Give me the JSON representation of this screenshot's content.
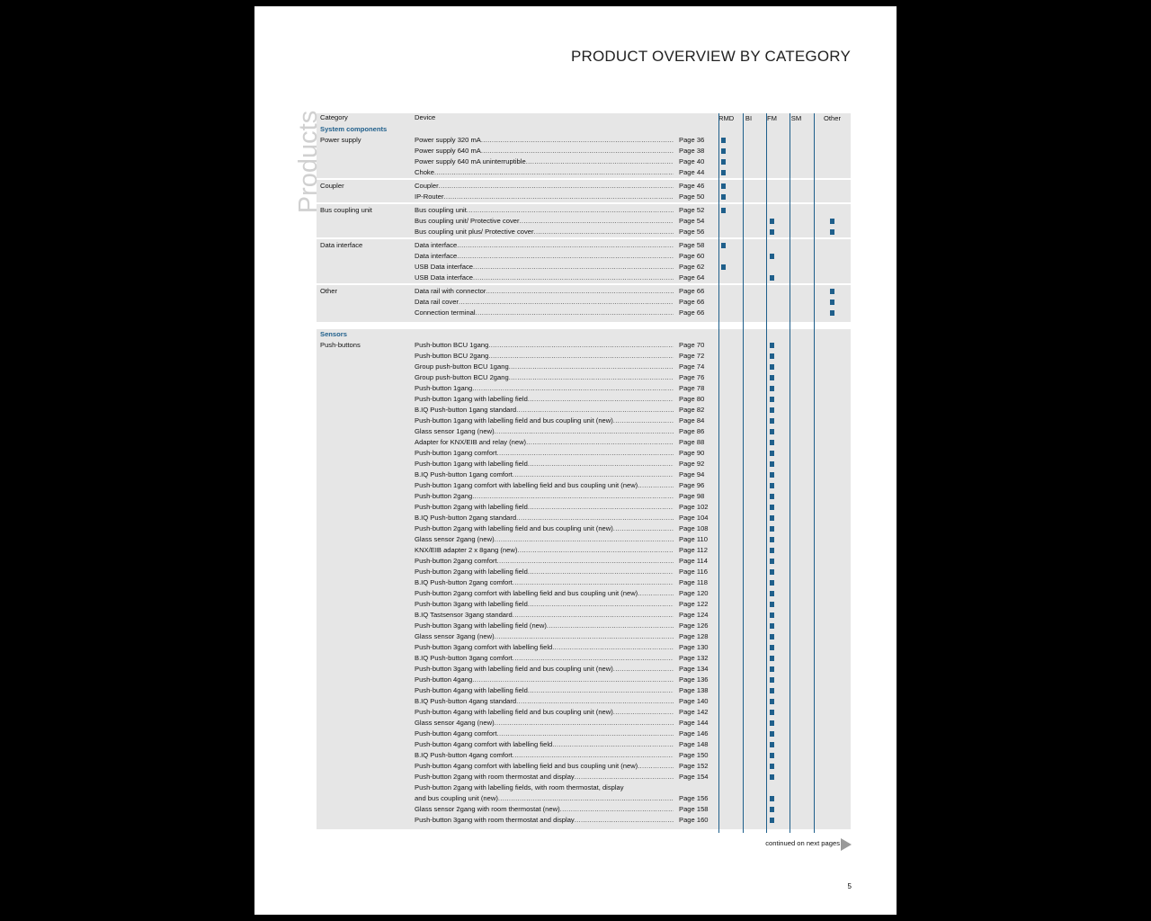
{
  "title": "PRODUCT OVERVIEW BY CATEGORY",
  "side_label": "Products",
  "header": {
    "category": "Category",
    "device": "Device",
    "columns": [
      "RMD",
      "BI",
      "FM",
      "SM",
      "Other"
    ]
  },
  "accent": "#1f5f8b",
  "sections": [
    {
      "title": "System components",
      "groups": [
        {
          "category": "Power supply",
          "rows": [
            {
              "device": "Power supply 320 mA",
              "page": "Page 36",
              "marks": [
                "RMD"
              ]
            },
            {
              "device": "Power supply 640 mA",
              "page": "Page 38",
              "marks": [
                "RMD"
              ]
            },
            {
              "device": "Power supply  640 mA uninterruptible",
              "page": "Page 40",
              "marks": [
                "RMD"
              ]
            },
            {
              "device": "Choke",
              "page": "Page 44",
              "marks": [
                "RMD"
              ]
            }
          ]
        },
        {
          "category": "Coupler",
          "rows": [
            {
              "device": "Coupler",
              "page": "Page 46",
              "marks": [
                "RMD"
              ]
            },
            {
              "device": "IP-Router",
              "page": "Page 50",
              "marks": [
                "RMD"
              ]
            }
          ]
        },
        {
          "category": "Bus coupling unit",
          "rows": [
            {
              "device": "Bus coupling unit",
              "page": "Page 52",
              "marks": [
                "RMD"
              ]
            },
            {
              "device": "Bus coupling unit/ Protective cover",
              "page": "Page 54",
              "marks": [
                "FM",
                "Other"
              ]
            },
            {
              "device": "Bus coupling unit plus/ Protective cover",
              "page": "Page 56",
              "marks": [
                "FM",
                "Other"
              ]
            }
          ]
        },
        {
          "category": "Data interface",
          "rows": [
            {
              "device": "Data interface",
              "page": "Page 58",
              "marks": [
                "RMD"
              ]
            },
            {
              "device": "Data interface",
              "page": "Page 60",
              "marks": [
                "FM"
              ]
            },
            {
              "device": "USB Data interface",
              "page": "Page 62",
              "marks": [
                "RMD"
              ]
            },
            {
              "device": "USB Data interface",
              "page": "Page 64",
              "marks": [
                "FM"
              ]
            }
          ]
        },
        {
          "category": "Other",
          "rows": [
            {
              "device": "Data rail with connector",
              "page": "Page 66",
              "marks": [
                "Other"
              ]
            },
            {
              "device": "Data rail cover",
              "page": "Page 66",
              "marks": [
                "Other"
              ]
            },
            {
              "device": "Connection terminal",
              "page": "Page 66",
              "marks": [
                "Other"
              ]
            }
          ]
        }
      ]
    },
    {
      "title": "Sensors",
      "groups": [
        {
          "category": "Push-buttons",
          "rows": [
            {
              "device": "Push-button BCU 1gang",
              "page": "Page 70",
              "marks": [
                "FM"
              ]
            },
            {
              "device": "Push-button BCU 2gang",
              "page": "Page 72",
              "marks": [
                "FM"
              ]
            },
            {
              "device": "Group push-button BCU 1gang",
              "page": "Page 74",
              "marks": [
                "FM"
              ]
            },
            {
              "device": "Group push-button BCU 2gang",
              "page": "Page 76",
              "marks": [
                "FM"
              ]
            },
            {
              "device": "Push-button 1gang",
              "page": "Page 78",
              "marks": [
                "FM"
              ]
            },
            {
              "device": "Push-button 1gang with labelling field",
              "page": "Page 80",
              "marks": [
                "FM"
              ]
            },
            {
              "device": "B.IQ Push-button 1gang standard",
              "page": "Page 82",
              "marks": [
                "FM"
              ]
            },
            {
              "device": "Push-button 1gang with labelling field and bus coupling unit (new)",
              "page": "Page 84",
              "marks": [
                "FM"
              ]
            },
            {
              "device": "Glass sensor 1gang (new)",
              "page": "Page 86",
              "marks": [
                "FM"
              ]
            },
            {
              "device": "Adapter for KNX/EIB and relay (new)",
              "page": "Page 88",
              "marks": [
                "FM"
              ]
            },
            {
              "device": "Push-button 1gang comfort",
              "page": "Page 90",
              "marks": [
                "FM"
              ]
            },
            {
              "device": "Push-button 1gang with labelling field",
              "page": "Page 92",
              "marks": [
                "FM"
              ]
            },
            {
              "device": "B.IQ Push-button 1gang comfort",
              "page": "Page 94",
              "marks": [
                "FM"
              ]
            },
            {
              "device": "Push-button 1gang comfort  with labelling field and bus coupling unit (new)",
              "page": "Page 96",
              "marks": [
                "FM"
              ]
            },
            {
              "device": "Push-button 2gang",
              "page": "Page 98",
              "marks": [
                "FM"
              ]
            },
            {
              "device": "Push-button 2gang with labelling field",
              "page": "Page 102",
              "marks": [
                "FM"
              ]
            },
            {
              "device": "B.IQ Push-button 2gang standard",
              "page": "Page 104",
              "marks": [
                "FM"
              ]
            },
            {
              "device": "Push-button 2gang with labelling field and bus coupling unit (new)",
              "page": "Page 108",
              "marks": [
                "FM"
              ]
            },
            {
              "device": "Glass sensor 2gang (new)",
              "page": "Page 110",
              "marks": [
                "FM"
              ]
            },
            {
              "device": "KNX/EIB adapter 2 x 8gang (new)",
              "page": "Page 112",
              "marks": [
                "FM"
              ]
            },
            {
              "device": "Push-button 2gang comfort",
              "page": "Page 114",
              "marks": [
                "FM"
              ]
            },
            {
              "device": "Push-button 2gang with labelling field",
              "page": "Page 116",
              "marks": [
                "FM"
              ]
            },
            {
              "device": "B.IQ Push-button 2gang comfort",
              "page": "Page 118",
              "marks": [
                "FM"
              ]
            },
            {
              "device": "Push-button 2gang comfort with labelling field and bus coupling unit (new)",
              "page": "Page 120",
              "marks": [
                "FM"
              ]
            },
            {
              "device": "Push-button 3gang with labelling field",
              "page": "Page 122",
              "marks": [
                "FM"
              ]
            },
            {
              "device": "B.IQ Tastsensor 3gang standard",
              "page": "Page 124",
              "marks": [
                "FM"
              ]
            },
            {
              "device": "Push-button 3gang with labelling field (new)",
              "page": "Page 126",
              "marks": [
                "FM"
              ]
            },
            {
              "device": "Glass sensor 3gang (new)",
              "page": "Page 128",
              "marks": [
                "FM"
              ]
            },
            {
              "device": "Push-button 3gang comfort with labelling field",
              "page": "Page 130",
              "marks": [
                "FM"
              ]
            },
            {
              "device": "B.IQ Push-button 3gang comfort",
              "page": "Page 132",
              "marks": [
                "FM"
              ]
            },
            {
              "device": "Push-button 3gang with labelling field and bus coupling unit (new)",
              "page": "Page 134",
              "marks": [
                "FM"
              ]
            },
            {
              "device": "Push-button 4gang",
              "page": "Page 136",
              "marks": [
                "FM"
              ]
            },
            {
              "device": "Push-button 4gang with labelling field",
              "page": "Page 138",
              "marks": [
                "FM"
              ]
            },
            {
              "device": "B.IQ Push-button 4gang standard",
              "page": "Page 140",
              "marks": [
                "FM"
              ]
            },
            {
              "device": "Push-button 4gang with labelling field and bus coupling unit (new)",
              "page": "Page 142",
              "marks": [
                "FM"
              ]
            },
            {
              "device": "Glass sensor 4gang (new)",
              "page": "Page 144",
              "marks": [
                "FM"
              ]
            },
            {
              "device": "Push-button 4gang comfort",
              "page": "Page 146",
              "marks": [
                "FM"
              ]
            },
            {
              "device": "Push-button 4gang comfort with labelling field",
              "page": "Page 148",
              "marks": [
                "FM"
              ]
            },
            {
              "device": "B.IQ Push-button 4gang comfort",
              "page": "Page 150",
              "marks": [
                "FM"
              ]
            },
            {
              "device": "Push-button 4gang comfort with labelling field and bus coupling unit (new)",
              "page": "Page 152",
              "marks": [
                "FM"
              ]
            },
            {
              "device": "Push-button 2gang with room thermostat and display",
              "page": "Page 154",
              "marks": [
                "FM"
              ]
            },
            {
              "device": "Push-button 2gang with labelling fields, with room thermostat, display",
              "page": "",
              "marks": []
            },
            {
              "device": "and bus coupling unit (new)",
              "page": "Page 156",
              "marks": [
                "FM"
              ]
            },
            {
              "device": "Glass sensor 2gang with room thermostat (new)",
              "page": "Page 158",
              "marks": [
                "FM"
              ]
            },
            {
              "device": "Push-button 3gang with room thermostat and display",
              "page": "Page 160",
              "marks": [
                "FM"
              ]
            }
          ]
        }
      ]
    }
  ],
  "continued": "continued on next pages",
  "page_number": "5"
}
